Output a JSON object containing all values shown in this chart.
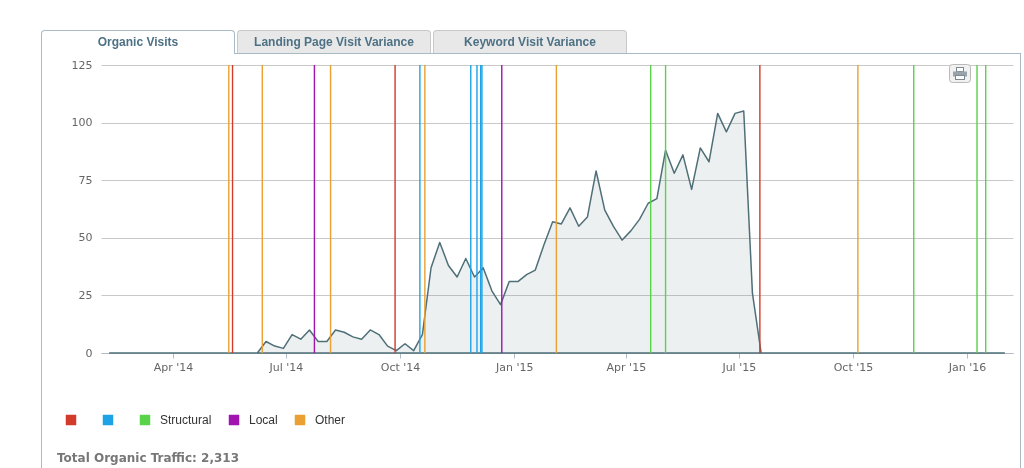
{
  "chart_data": {
    "type": "area",
    "title": "Organic Visits",
    "annotations": [
      "Landing Page Visit Variance",
      "Keyword Visit Variance",
      "Total Organic Traffic: 2,313"
    ],
    "x": [
      "2014-02-09",
      "2014-06-08",
      "2014-06-15",
      "2014-06-22",
      "2014-06-29",
      "2014-07-06",
      "2014-07-13",
      "2014-07-20",
      "2014-07-27",
      "2014-08-03",
      "2014-08-10",
      "2014-08-17",
      "2014-08-24",
      "2014-08-31",
      "2014-09-07",
      "2014-09-14",
      "2014-09-21",
      "2014-09-28",
      "2014-10-05",
      "2014-10-12",
      "2014-10-19",
      "2014-10-26",
      "2014-11-02",
      "2014-11-09",
      "2014-11-16",
      "2014-11-23",
      "2014-11-30",
      "2014-12-07",
      "2014-12-14",
      "2014-12-21",
      "2014-12-28",
      "2015-01-04",
      "2015-01-11",
      "2015-01-18",
      "2015-01-25",
      "2015-02-01",
      "2015-02-08",
      "2015-02-15",
      "2015-02-22",
      "2015-03-01",
      "2015-03-08",
      "2015-03-15",
      "2015-03-22",
      "2015-03-29",
      "2015-04-05",
      "2015-04-12",
      "2015-04-19",
      "2015-04-26",
      "2015-05-03",
      "2015-05-10",
      "2015-05-17",
      "2015-05-24",
      "2015-05-31",
      "2015-06-07",
      "2015-06-14",
      "2015-06-21",
      "2015-06-28",
      "2015-07-05",
      "2015-07-12",
      "2015-07-19",
      "2016-01-31"
    ],
    "values": [
      0,
      0,
      5,
      3,
      2,
      8,
      6,
      10,
      5,
      5,
      10,
      9,
      7,
      6,
      10,
      8,
      3,
      1,
      4,
      1,
      8,
      37,
      48,
      38,
      33,
      41,
      33,
      37,
      27,
      21,
      31,
      31,
      34,
      36,
      47,
      57,
      56,
      63,
      55,
      59,
      79,
      62,
      55,
      49,
      53,
      58,
      65,
      67,
      88,
      78,
      86,
      71,
      89,
      83,
      104,
      96,
      104,
      105,
      26,
      0,
      0
    ],
    "color": "#4f6f78",
    "xlim": [
      "2014-02-02",
      "2016-02-07"
    ],
    "xticks": [
      {
        "value": "2014-04-01",
        "label": "Apr '14"
      },
      {
        "value": "2014-07-01",
        "label": "Jul '14"
      },
      {
        "value": "2014-10-01",
        "label": "Oct '14"
      },
      {
        "value": "2015-01-01",
        "label": "Jan '15"
      },
      {
        "value": "2015-04-01",
        "label": "Apr '15"
      },
      {
        "value": "2015-07-01",
        "label": "Jul '15"
      },
      {
        "value": "2015-10-01",
        "label": "Oct '15"
      },
      {
        "value": "2016-01-01",
        "label": "Jan '16"
      }
    ],
    "ylim": [
      0,
      125
    ],
    "yticks": [
      0,
      25,
      50,
      75,
      100,
      125
    ],
    "grid": "y",
    "legend": "bottom left",
    "ref_lines": [
      {
        "axis": "x",
        "value": "2014-05-19",
        "color": "#d23b2a"
      },
      {
        "axis": "x",
        "value": "2014-09-27",
        "color": "#d23b2a"
      },
      {
        "axis": "x",
        "value": "2015-07-18",
        "color": "#d23b2a"
      },
      {
        "axis": "x",
        "value": "2014-10-17",
        "color": "#1ea3e6"
      },
      {
        "axis": "x",
        "value": "2014-11-27",
        "color": "#1ea3e6"
      },
      {
        "axis": "x",
        "value": "2014-12-02",
        "color": "#1ea3e6"
      },
      {
        "axis": "x",
        "value": "2014-12-05",
        "color": "#1ea3e6"
      },
      {
        "axis": "x",
        "value": "2014-12-06",
        "color": "#1ea3e6"
      },
      {
        "axis": "x",
        "value": "2015-04-21",
        "label": "Structural",
        "color": "#5ad34a"
      },
      {
        "axis": "x",
        "value": "2015-05-03",
        "color": "#5ad34a"
      },
      {
        "axis": "x",
        "value": "2015-11-19",
        "color": "#5ad34a"
      },
      {
        "axis": "x",
        "value": "2016-01-09",
        "color": "#5ad34a"
      },
      {
        "axis": "x",
        "value": "2016-01-16",
        "color": "#5ad34a"
      },
      {
        "axis": "x",
        "value": "2014-07-24",
        "label": "Local",
        "color": "#a014b0"
      },
      {
        "axis": "x",
        "value": "2014-12-22",
        "color": "#a014b0"
      },
      {
        "axis": "x",
        "value": "2014-05-16",
        "label": "Other",
        "color": "#eaa032"
      },
      {
        "axis": "x",
        "value": "2014-06-12",
        "color": "#eaa032"
      },
      {
        "axis": "x",
        "value": "2014-08-06",
        "color": "#eaa032"
      },
      {
        "axis": "x",
        "value": "2014-10-21",
        "color": "#eaa032"
      },
      {
        "axis": "x",
        "value": "2015-02-04",
        "color": "#eaa032"
      },
      {
        "axis": "x",
        "value": "2015-10-05",
        "color": "#eaa032"
      }
    ]
  }
}
